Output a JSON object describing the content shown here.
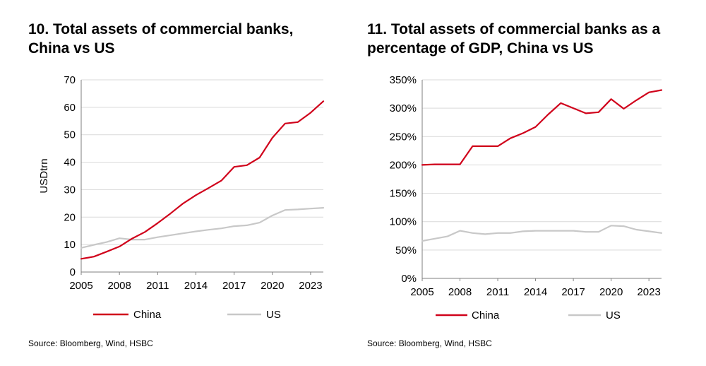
{
  "chart_data": [
    {
      "type": "line",
      "title": "10. Total assets of commercial banks, China vs US",
      "title_lines": [
        "10. Total assets of commercial banks,",
        "China vs US"
      ],
      "xlabel": "",
      "ylabel": "USDtrn",
      "x": [
        2005,
        2006,
        2007,
        2008,
        2009,
        2010,
        2011,
        2012,
        2013,
        2014,
        2015,
        2016,
        2017,
        2018,
        2019,
        2020,
        2021,
        2022,
        2023,
        2024
      ],
      "x_ticks": [
        2005,
        2008,
        2011,
        2014,
        2017,
        2020,
        2023
      ],
      "x_tick_labels": [
        "2005",
        "2008",
        "2011",
        "2014",
        "2017",
        "2020",
        "2023"
      ],
      "xlim": [
        2005,
        2024
      ],
      "ylim": [
        0,
        70
      ],
      "y_ticks": [
        0,
        10,
        20,
        30,
        40,
        50,
        60,
        70
      ],
      "y_tick_labels": [
        "0",
        "10",
        "20",
        "30",
        "40",
        "50",
        "60",
        "70"
      ],
      "grid": "horizontal",
      "series": [
        {
          "name": "China",
          "color": "#d0021b",
          "values": [
            4.8,
            5.6,
            7.4,
            9.3,
            12.2,
            14.6,
            17.8,
            21.3,
            25.0,
            28.0,
            30.6,
            33.3,
            38.3,
            38.9,
            41.7,
            48.9,
            54.1,
            54.6,
            58.0,
            62.2
          ]
        },
        {
          "name": "US",
          "color": "#c8c8c8",
          "values": [
            8.8,
            9.9,
            10.9,
            12.3,
            11.8,
            11.8,
            12.7,
            13.4,
            14.1,
            14.8,
            15.4,
            15.9,
            16.7,
            17.0,
            18.0,
            20.6,
            22.6,
            22.8,
            23.1,
            23.4
          ]
        }
      ],
      "legend": [
        "China",
        "US"
      ],
      "source": "Source: Bloomberg, Wind, HSBC"
    },
    {
      "type": "line",
      "title": "11. Total assets of commercial banks as a percentage of GDP, China vs US",
      "title_lines": [
        "11. Total assets of commercial banks as a",
        "percentage of GDP, China vs US"
      ],
      "xlabel": "",
      "ylabel": "",
      "x": [
        2005,
        2006,
        2007,
        2008,
        2009,
        2010,
        2011,
        2012,
        2013,
        2014,
        2015,
        2016,
        2017,
        2018,
        2019,
        2020,
        2021,
        2022,
        2023,
        2024
      ],
      "x_ticks": [
        2005,
        2008,
        2011,
        2014,
        2017,
        2020,
        2023
      ],
      "x_tick_labels": [
        "2005",
        "2008",
        "2011",
        "2014",
        "2017",
        "2020",
        "2023"
      ],
      "xlim": [
        2005,
        2024
      ],
      "ylim": [
        0,
        350
      ],
      "y_ticks": [
        0,
        50,
        100,
        150,
        200,
        250,
        300,
        350
      ],
      "y_tick_labels": [
        "0%",
        "50%",
        "100%",
        "150%",
        "200%",
        "250%",
        "300%",
        "350%"
      ],
      "grid": "horizontal",
      "series": [
        {
          "name": "China",
          "color": "#d0021b",
          "values": [
            200,
            201,
            201,
            201,
            233,
            233,
            233,
            247,
            256,
            267,
            289,
            309,
            300,
            291,
            293,
            316,
            299,
            314,
            328,
            332
          ]
        },
        {
          "name": "US",
          "color": "#c8c8c8",
          "values": [
            66,
            70,
            74,
            84,
            80,
            78,
            80,
            80,
            83,
            84,
            84,
            84,
            84,
            82,
            82,
            93,
            92,
            86,
            83,
            80
          ]
        }
      ],
      "legend": [
        "China",
        "US"
      ],
      "source": "Source: Bloomberg, Wind, HSBC"
    }
  ]
}
